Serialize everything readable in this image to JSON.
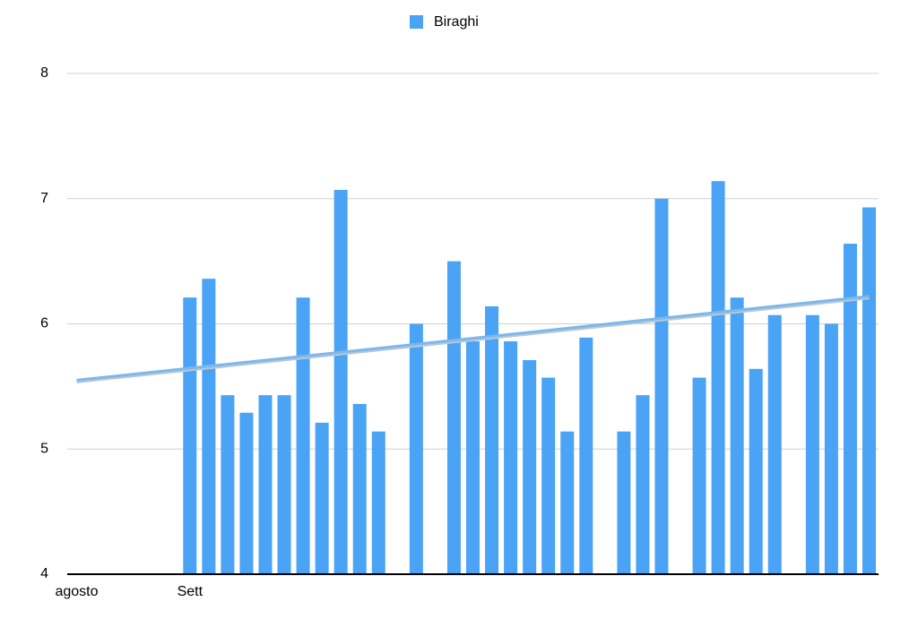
{
  "chart_data": {
    "type": "bar",
    "categories": [
      "agosto",
      null,
      null,
      null,
      null,
      null,
      "Sett",
      null,
      null,
      null,
      null,
      null,
      null,
      null,
      null,
      null,
      null,
      null,
      null,
      null,
      null,
      null,
      null,
      null,
      null,
      null,
      null,
      null,
      null,
      null,
      null,
      null,
      null,
      null,
      null,
      null,
      null,
      null,
      null,
      null,
      null,
      null,
      null
    ],
    "series": [
      {
        "name": "Biraghi",
        "color": "#4aa3f5",
        "values": [
          null,
          null,
          null,
          null,
          null,
          null,
          6.21,
          6.36,
          5.43,
          5.29,
          5.43,
          5.43,
          6.21,
          5.21,
          7.07,
          5.36,
          5.14,
          null,
          6.0,
          null,
          6.5,
          5.86,
          6.14,
          5.86,
          5.71,
          5.57,
          5.14,
          5.89,
          null,
          5.14,
          5.43,
          7.0,
          null,
          5.57,
          7.14,
          6.21,
          5.64,
          6.07,
          null,
          6.07,
          6.0,
          6.64,
          6.93
        ]
      }
    ],
    "trendline": {
      "color": "#7ab8ee",
      "values": [
        5.55,
        6.22
      ]
    },
    "ylim": [
      4,
      8
    ],
    "yticks": [
      4,
      5,
      6,
      7,
      8
    ],
    "grid": true,
    "legend": "top"
  }
}
